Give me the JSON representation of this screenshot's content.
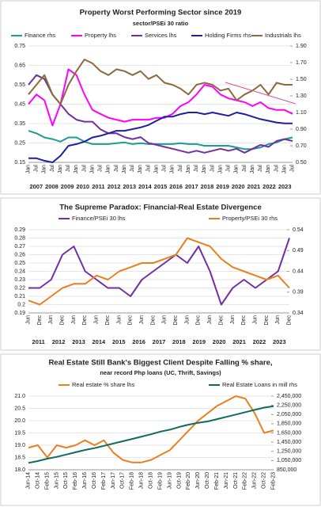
{
  "chart_data": [
    {
      "type": "line",
      "title": "Property Worst Performing Sector since 2019",
      "subtitle": "sector/PSEi 30 ratio",
      "categories": [
        "Jan",
        "Jul",
        "Jan",
        "Jul",
        "Jan",
        "Jul",
        "Jan",
        "Jul",
        "Jan",
        "Jul",
        "Jan",
        "Jul",
        "Jan",
        "Jul",
        "Jan",
        "Jul",
        "Jan",
        "Jul",
        "Jan",
        "Jul",
        "Jan",
        "Jul",
        "Jan",
        "Jul",
        "Jan",
        "Jul",
        "Jan",
        "Jul",
        "Jan",
        "Jul",
        "Jan",
        "Jul",
        "Jan",
        "Jul"
      ],
      "groups": [
        "2007",
        "2008",
        "2009",
        "2010",
        "2011",
        "2012",
        "2013",
        "2014",
        "2015",
        "2016",
        "2017",
        "2018",
        "2019",
        "2020",
        "2021",
        "2022",
        "2023"
      ],
      "ylim": [
        0.15,
        0.75
      ],
      "yticks": [
        0.15,
        0.25,
        0.35,
        0.45,
        0.55,
        0.65,
        0.75
      ],
      "y2lim": [
        0.5,
        1.9
      ],
      "y2ticks": [
        {
          "value": 0.5,
          "label": "0.50"
        },
        {
          "value": 0.7,
          "label": "0.70"
        },
        {
          "value": 0.9,
          "label": "0.90"
        },
        {
          "value": 1.1,
          "label": "1.10"
        },
        {
          "value": 1.3,
          "label": "1.30"
        },
        {
          "value": 1.5,
          "label": "1.50"
        },
        {
          "value": 1.7,
          "label": "1.70"
        },
        {
          "value": 1.9,
          "label": "1.90"
        }
      ],
      "series": [
        {
          "name": "Finance rhs",
          "color": "#1a9e8f",
          "axis": "y2",
          "values": [
            0.88,
            0.85,
            0.8,
            0.78,
            0.75,
            0.8,
            0.8,
            0.75,
            0.72,
            0.72,
            0.72,
            0.73,
            0.74,
            0.72,
            0.73,
            0.72,
            0.72,
            0.72,
            0.72,
            0.73,
            0.72,
            0.72,
            0.7,
            0.7,
            0.7,
            0.7,
            0.68,
            0.66,
            0.66,
            0.68,
            0.72,
            0.74,
            0.78,
            0.8
          ]
        },
        {
          "name": "Property lhs",
          "color": "#ff00ff",
          "values": [
            0.45,
            0.5,
            0.47,
            0.34,
            0.45,
            0.63,
            0.6,
            0.5,
            0.42,
            0.4,
            0.38,
            0.37,
            0.36,
            0.37,
            0.37,
            0.37,
            0.38,
            0.38,
            0.4,
            0.44,
            0.46,
            0.5,
            0.55,
            0.54,
            0.5,
            0.48,
            0.47,
            0.46,
            0.44,
            0.46,
            0.43,
            0.42,
            0.42,
            0.4
          ]
        },
        {
          "name": "Services lhs",
          "color": "#7030a0",
          "values": [
            0.55,
            0.6,
            0.58,
            0.5,
            0.45,
            0.4,
            0.37,
            0.36,
            0.36,
            0.32,
            0.3,
            0.3,
            0.28,
            0.27,
            0.28,
            0.25,
            0.24,
            0.23,
            0.22,
            0.21,
            0.2,
            0.21,
            0.2,
            0.21,
            0.22,
            0.21,
            0.22,
            0.2,
            0.22,
            0.24,
            0.23,
            0.26,
            0.27,
            0.26
          ]
        },
        {
          "name": "Holding Firms rhs",
          "color": "#1f1f9f",
          "axis": "y2",
          "values": [
            0.55,
            0.55,
            0.52,
            0.5,
            0.58,
            0.7,
            0.72,
            0.75,
            0.8,
            0.82,
            0.85,
            0.88,
            0.88,
            0.9,
            0.92,
            0.95,
            1.0,
            1.05,
            1.05,
            1.08,
            1.1,
            1.1,
            1.08,
            1.1,
            1.08,
            1.06,
            1.1,
            1.08,
            1.05,
            1.02,
            1.0,
            0.98,
            0.97,
            0.97
          ]
        },
        {
          "name": "Industrials lhs",
          "color": "#8b6a3e",
          "values": [
            0.5,
            0.55,
            0.6,
            0.5,
            0.45,
            0.55,
            0.62,
            0.68,
            0.66,
            0.62,
            0.6,
            0.63,
            0.62,
            0.6,
            0.62,
            0.58,
            0.6,
            0.56,
            0.55,
            0.53,
            0.5,
            0.55,
            0.56,
            0.55,
            0.52,
            0.53,
            0.47,
            0.5,
            0.52,
            0.55,
            0.5,
            0.56,
            0.55,
            0.55
          ]
        }
      ]
    },
    {
      "type": "line",
      "title": "The Supreme Paradox: Financial-Real Estate Divergence",
      "categories": [
        "Jun",
        "Dec",
        "Jun",
        "Dec",
        "Jun",
        "Dec",
        "Jun",
        "Dec",
        "Jun",
        "Dec",
        "Jun",
        "Dec",
        "Jun",
        "Dec",
        "Jun",
        "Dec",
        "Jun",
        "Dec",
        "Jun",
        "Dec",
        "Jun",
        "Dec",
        "Jun",
        "Dec"
      ],
      "groups": [
        "2011",
        "2012",
        "2013",
        "2014",
        "2015",
        "2016",
        "2017",
        "2018",
        "2019",
        "2020",
        "2021",
        "2022",
        "2023"
      ],
      "ylim": [
        0.19,
        0.29
      ],
      "yticks": [
        0.19,
        0.2,
        0.21,
        0.22,
        0.23,
        0.24,
        0.25,
        0.26,
        0.27,
        0.28,
        0.29
      ],
      "y2lim": [
        0.34,
        0.54
      ],
      "y2ticks": [
        0.34,
        0.39,
        0.44,
        0.49,
        0.54
      ],
      "series": [
        {
          "name": "Finance/PSEi 30 lhs",
          "color": "#7030a0",
          "values": [
            0.22,
            0.22,
            0.23,
            0.26,
            0.27,
            0.24,
            0.23,
            0.22,
            0.22,
            0.21,
            0.23,
            0.24,
            0.25,
            0.26,
            0.25,
            0.27,
            0.24,
            0.2,
            0.22,
            0.23,
            0.22,
            0.23,
            0.24,
            0.28
          ]
        },
        {
          "name": "Property/PSEi 30 rhs",
          "color": "#e8801f",
          "axis": "y2",
          "values": [
            0.37,
            0.36,
            0.38,
            0.4,
            0.41,
            0.41,
            0.43,
            0.42,
            0.44,
            0.45,
            0.46,
            0.46,
            0.47,
            0.48,
            0.52,
            0.51,
            0.5,
            0.47,
            0.45,
            0.44,
            0.43,
            0.42,
            0.43,
            0.4
          ]
        }
      ]
    },
    {
      "type": "line",
      "title": "Real Estate Still Bank's Biggest Client Despite Falling % share,",
      "subtitle": "near record Php loans (UC, Thrift, Savings)",
      "categories": [
        "Jun-14",
        "Oct-14",
        "Feb-15",
        "Jun-15",
        "Oct-15",
        "Feb-16",
        "Jun-16",
        "Oct-16",
        "Feb-17",
        "Jun-17",
        "Oct-17",
        "Feb-18",
        "Jun-18",
        "Oct-18",
        "Feb-19",
        "Jun-19",
        "Oct-19",
        "Feb-20",
        "Jun-20",
        "Oct-20",
        "Feb-21",
        "Jun-21",
        "Oct-21",
        "Feb-22",
        "Jun-22",
        "Oct-22",
        "Feb-23"
      ],
      "ylim": [
        18,
        21
      ],
      "yticks": [
        {
          "value": 18,
          "label": "18.0"
        },
        18.5,
        {
          "value": 19,
          "label": "19.0"
        },
        19.5,
        {
          "value": 20,
          "label": "20.0"
        },
        20.5,
        {
          "value": 21,
          "label": "21.0"
        }
      ],
      "y2lim": [
        850000,
        2450000
      ],
      "y2ticks": [
        {
          "value": 850000,
          "label": "850,000"
        },
        {
          "value": 1050000,
          "label": "1,050,000"
        },
        {
          "value": 1250000,
          "label": "1,250,000"
        },
        {
          "value": 1450000,
          "label": "1,450,000"
        },
        {
          "value": 1650000,
          "label": "1,650,000"
        },
        {
          "value": 1850000,
          "label": "1,850,000"
        },
        {
          "value": 2050000,
          "label": "2,050,000"
        },
        {
          "value": 2250000,
          "label": "2,250,000"
        },
        {
          "value": 2450000,
          "label": "2,450,000"
        }
      ],
      "series": [
        {
          "name": "Real estate % share lhs",
          "color": "#e8801f",
          "values": [
            18.9,
            19.0,
            18.5,
            19.0,
            18.9,
            19.0,
            19.2,
            19.0,
            19.2,
            18.7,
            18.4,
            18.3,
            18.3,
            18.4,
            18.6,
            18.8,
            19.2,
            19.6,
            20.0,
            20.3,
            20.6,
            20.8,
            21.0,
            20.9,
            20.3,
            19.5,
            19.6
          ]
        },
        {
          "name": "Real Estate Loans in mill rhs",
          "color": "#0f6b5e",
          "axis": "y2",
          "values": [
            1000000,
            1040000,
            1090000,
            1130000,
            1180000,
            1230000,
            1280000,
            1320000,
            1370000,
            1420000,
            1470000,
            1520000,
            1570000,
            1620000,
            1680000,
            1720000,
            1780000,
            1830000,
            1870000,
            1900000,
            1950000,
            2000000,
            2050000,
            2100000,
            2150000,
            2200000,
            2230000
          ]
        }
      ]
    }
  ]
}
